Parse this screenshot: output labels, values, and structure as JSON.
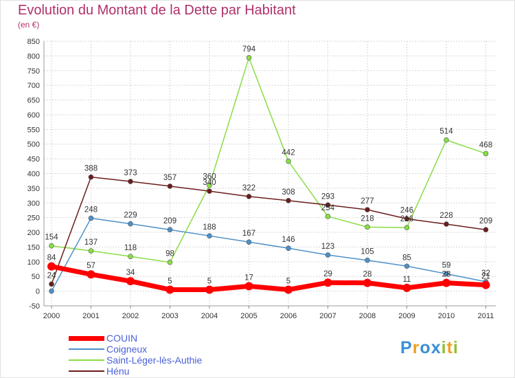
{
  "chart_data": {
    "type": "line",
    "title": "Evolution du Montant de la Dette par Habitant",
    "subtitle": "(en €)",
    "x": [
      "2000",
      "2001",
      "2002",
      "2003",
      "2004",
      "2005",
      "2006",
      "2007",
      "2008",
      "2009",
      "2010",
      "2011"
    ],
    "ylim": [
      -50,
      850
    ],
    "yticks": [
      -50,
      0,
      50,
      100,
      150,
      200,
      250,
      300,
      350,
      400,
      450,
      500,
      550,
      600,
      650,
      700,
      750,
      800,
      850
    ],
    "grid": true,
    "legend_position": "bottom-left",
    "series": [
      {
        "name": "COUIN",
        "color": "#ff0000",
        "values": [
          84,
          57,
          34,
          5,
          5,
          17,
          5,
          29,
          28,
          11,
          28,
          21
        ],
        "labels": [
          "84",
          "57",
          "34",
          "5",
          "5",
          "17",
          "5",
          "29",
          "28",
          "11",
          "28",
          "21"
        ]
      },
      {
        "name": "Coigneux",
        "color": "#4d90c8",
        "values": [
          0,
          248,
          229,
          209,
          188,
          167,
          146,
          123,
          105,
          85,
          59,
          32
        ],
        "labels": [
          "",
          "248",
          "229",
          "209",
          "188",
          "167",
          "146",
          "123",
          "105",
          "85",
          "59",
          "32"
        ]
      },
      {
        "name": "Saint-Léger-lès-Authie",
        "color": "#88dd44",
        "values": [
          154,
          137,
          118,
          98,
          360,
          794,
          442,
          254,
          218,
          216,
          514,
          468
        ],
        "labels": [
          "154",
          "137",
          "118",
          "98",
          "360",
          "794",
          "442",
          "254",
          "218",
          "216",
          "514",
          "468"
        ]
      },
      {
        "name": "Hénu",
        "color": "#6b1c1c",
        "values": [
          24,
          388,
          373,
          357,
          340,
          322,
          308,
          293,
          277,
          246,
          228,
          209
        ],
        "labels": [
          "24",
          "388",
          "373",
          "357",
          "340",
          "322",
          "308",
          "293",
          "277",
          "246",
          "228",
          "209"
        ]
      }
    ]
  },
  "logo": {
    "text": "Proxiti",
    "letters": [
      "P",
      "r",
      "o",
      "x",
      "i",
      "t",
      "i"
    ],
    "colors": [
      "#3a8fd6",
      "#f0a020",
      "#3a8fd6",
      "#3a8fd6",
      "#90c030",
      "#f0a020",
      "#90c030"
    ]
  }
}
